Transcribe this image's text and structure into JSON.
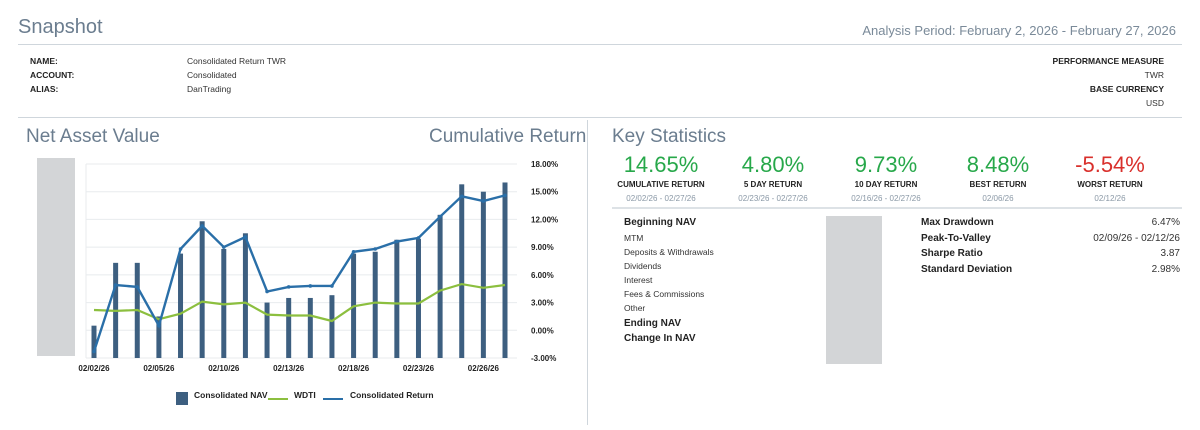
{
  "header": {
    "title": "Snapshot",
    "analysis_period": "Analysis Period: February 2, 2026 - February 27, 2026"
  },
  "account_info": {
    "left": [
      {
        "key": "NAME:",
        "value": "Consolidated Return TWR"
      },
      {
        "key": "ACCOUNT:",
        "value": "Consolidated"
      },
      {
        "key": "ALIAS:",
        "value": "DanTrading"
      }
    ],
    "right": [
      {
        "key": "PERFORMANCE MEASURE",
        "value": "TWR"
      },
      {
        "key": "BASE CURRENCY",
        "value": "USD"
      }
    ]
  },
  "nav_section": {
    "title_left": "Net Asset Value",
    "title_right": "Cumulative Return"
  },
  "chart_data": {
    "type": "bar",
    "x": [
      "02/02/26",
      "02/03/26",
      "02/04/26",
      "02/05/26",
      "02/06/26",
      "02/09/26",
      "02/10/26",
      "02/11/26",
      "02/12/26",
      "02/13/26",
      "02/16/26",
      "02/17/26",
      "02/18/26",
      "02/19/26",
      "02/20/26",
      "02/23/26",
      "02/24/26",
      "02/25/26",
      "02/26/26",
      "02/27/26"
    ],
    "x_tick_labels": [
      "02/02/26",
      "02/05/26",
      "02/10/26",
      "02/13/26",
      "02/18/26",
      "02/23/26",
      "02/26/26"
    ],
    "y_right_ticks": [
      "18.00%",
      "15.00%",
      "12.00%",
      "9.00%",
      "6.00%",
      "3.00%",
      "0.00%",
      "-3.00%"
    ],
    "ylim_right": [
      -3,
      18
    ],
    "series": [
      {
        "name": "Consolidated NAV",
        "type": "bar",
        "color": "#3d5f80",
        "values": [
          0.5,
          7.3,
          7.3,
          1.5,
          8.3,
          11.8,
          8.8,
          10.5,
          3.0,
          3.5,
          3.5,
          3.8,
          8.3,
          8.5,
          9.8,
          9.9,
          12.5,
          15.8,
          15.0,
          16.0
        ]
      },
      {
        "name": "WDTI",
        "type": "line",
        "color": "#8cbf3f",
        "values": [
          2.2,
          2.1,
          2.2,
          1.2,
          1.8,
          3.1,
          2.8,
          3.0,
          1.7,
          1.6,
          1.6,
          1.0,
          2.6,
          3.0,
          2.9,
          2.9,
          4.3,
          5.0,
          4.6,
          4.9
        ]
      },
      {
        "name": "Consolidated Return",
        "type": "line",
        "color": "#2a6fa8",
        "values": [
          -2.3,
          4.9,
          4.7,
          0.5,
          8.8,
          11.3,
          9.0,
          10.1,
          4.2,
          4.7,
          4.8,
          4.8,
          8.5,
          8.8,
          9.6,
          10.0,
          12.3,
          14.5,
          14.0,
          14.6
        ]
      }
    ],
    "grid": true,
    "legend_position": "bottom-center"
  },
  "key_statistics": {
    "title": "Key Statistics",
    "stats": [
      {
        "value": "14.65%",
        "label": "CUMULATIVE RETURN",
        "dates": "02/02/26 - 02/27/26",
        "tone": "green"
      },
      {
        "value": "4.80%",
        "label": "5 DAY RETURN",
        "dates": "02/23/26 - 02/27/26",
        "tone": "green"
      },
      {
        "value": "9.73%",
        "label": "10 DAY RETURN",
        "dates": "02/16/26 - 02/27/26",
        "tone": "green"
      },
      {
        "value": "8.48%",
        "label": "BEST RETURN",
        "dates": "02/06/26",
        "tone": "green"
      },
      {
        "value": "-5.54%",
        "label": "WORST RETURN",
        "dates": "02/12/26",
        "tone": "red"
      }
    ],
    "nav_breakdown": [
      {
        "label": "Beginning NAV",
        "bold": true
      },
      {
        "label": "MTM",
        "bold": false
      },
      {
        "label": "Deposits & Withdrawals",
        "bold": false
      },
      {
        "label": "Dividends",
        "bold": false
      },
      {
        "label": "Interest",
        "bold": false
      },
      {
        "label": "Fees & Commissions",
        "bold": false
      },
      {
        "label": "Other",
        "bold": false
      },
      {
        "label": "Ending NAV",
        "bold": true
      },
      {
        "label": "Change In NAV",
        "bold": true
      }
    ],
    "risk": [
      {
        "key": "Max Drawdown",
        "value": "6.47%"
      },
      {
        "key": "Peak-To-Valley",
        "value": "02/09/26 - 02/12/26"
      },
      {
        "key": "Sharpe Ratio",
        "value": "3.87"
      },
      {
        "key": "Standard Deviation",
        "value": "2.98%"
      }
    ]
  }
}
